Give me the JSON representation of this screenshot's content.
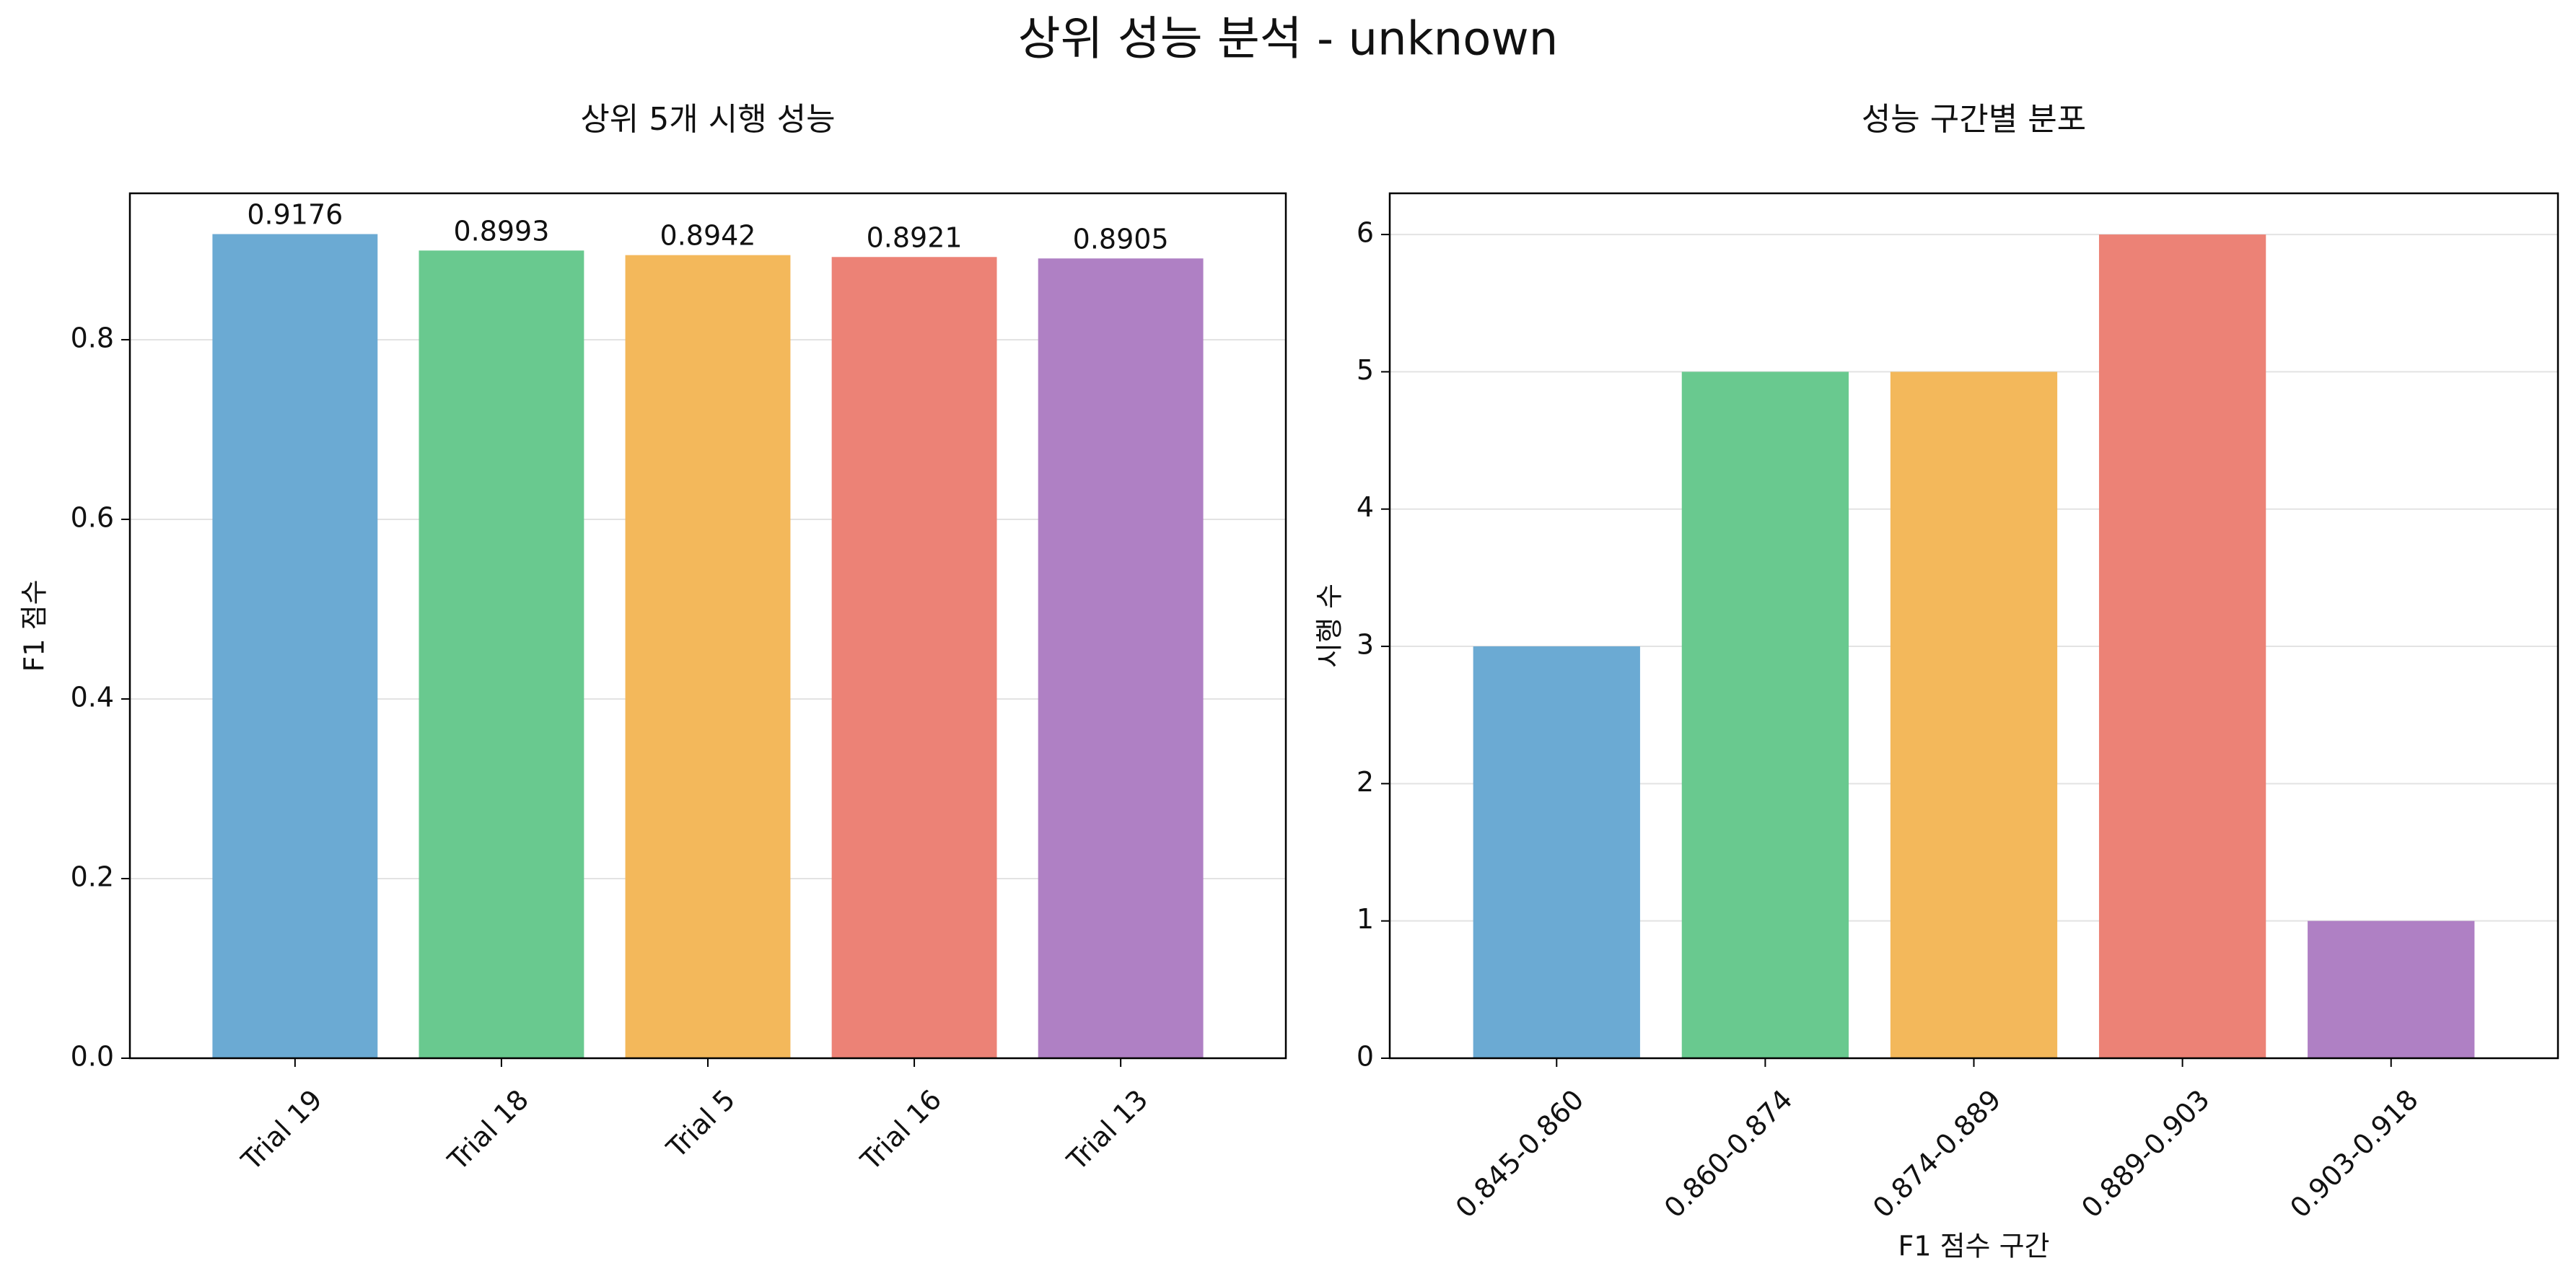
{
  "figure": {
    "title": "상위 성능 분석 - unknown"
  },
  "chart_data": [
    {
      "type": "bar",
      "title": "상위 5개 시행 성능",
      "xlabel": "",
      "ylabel": "F1 점수",
      "categories": [
        "Trial 19",
        "Trial 18",
        "Trial 5",
        "Trial 16",
        "Trial 13"
      ],
      "values": [
        0.9176,
        0.8993,
        0.8942,
        0.8921,
        0.8905
      ],
      "data_labels": [
        "0.9176",
        "0.8993",
        "0.8942",
        "0.8921",
        "0.8905"
      ],
      "ylim": [
        0,
        0.963
      ],
      "yticks": [
        0.0,
        0.2,
        0.4,
        0.6,
        0.8
      ],
      "ytick_labels": [
        "0.0",
        "0.2",
        "0.4",
        "0.6",
        "0.8"
      ],
      "colors": [
        "#6baad3",
        "#69c98f",
        "#f3b85b",
        "#ec8276",
        "#af80c4"
      ],
      "grid": "y",
      "xtick_rotation": 45
    },
    {
      "type": "bar",
      "title": "성능 구간별 분포",
      "xlabel": "F1 점수 구간",
      "ylabel": "시행 수",
      "categories": [
        "0.845-0.860",
        "0.860-0.874",
        "0.874-0.889",
        "0.889-0.903",
        "0.903-0.918"
      ],
      "values": [
        3,
        5,
        5,
        6,
        1
      ],
      "ylim": [
        0,
        6.3
      ],
      "yticks": [
        0,
        1,
        2,
        3,
        4,
        5,
        6
      ],
      "ytick_labels": [
        "0",
        "1",
        "2",
        "3",
        "4",
        "5",
        "6"
      ],
      "colors": [
        "#6baad3",
        "#69c98f",
        "#f3b85b",
        "#ec8276",
        "#af80c4"
      ],
      "grid": "y",
      "xtick_rotation": 45
    }
  ]
}
